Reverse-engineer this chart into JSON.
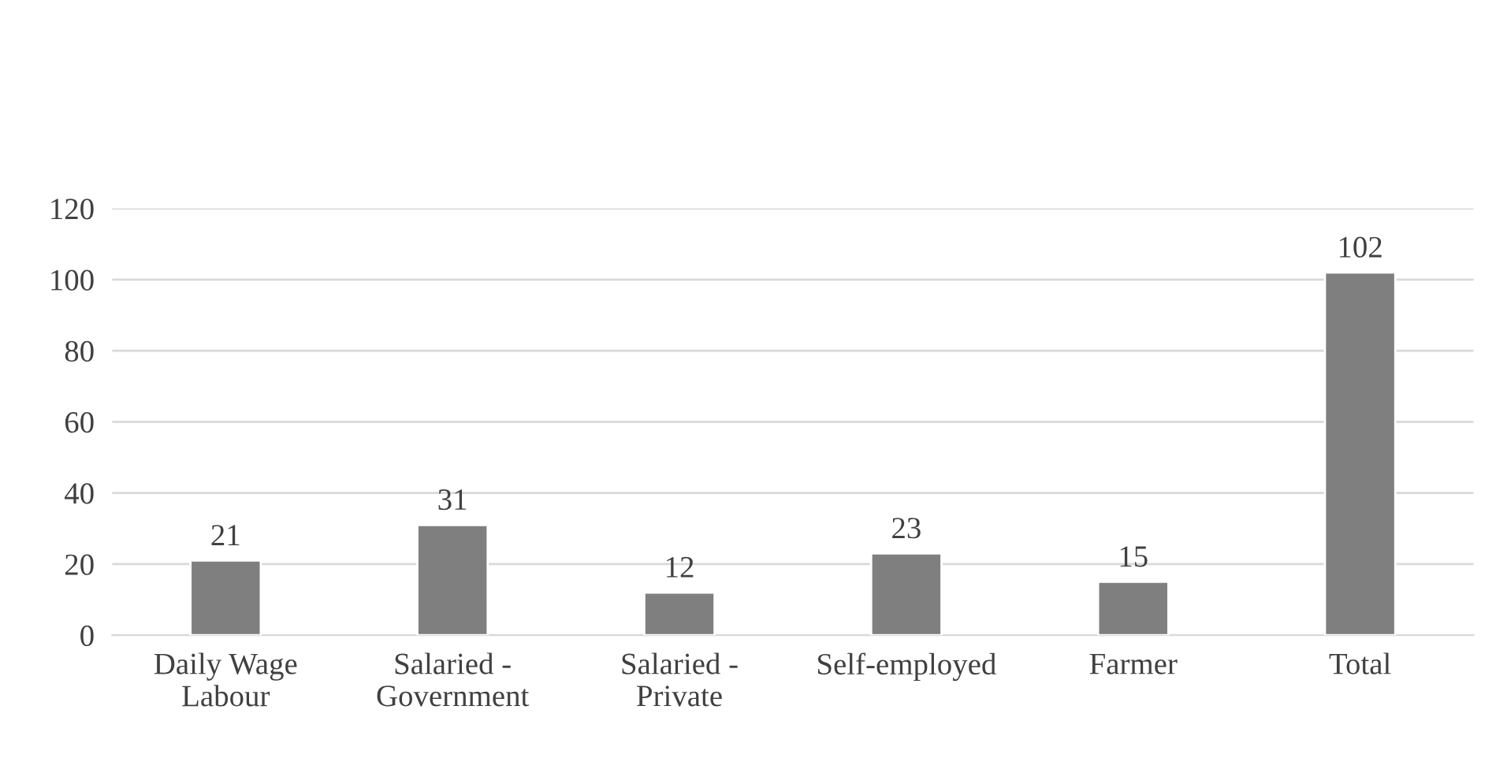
{
  "chart_data": {
    "type": "bar",
    "categories": [
      "Daily Wage\nLabour",
      "Salaried -\nGovernment",
      "Salaried -\nPrivate",
      "Self-employed",
      "Farmer",
      "Total"
    ],
    "values": [
      21,
      31,
      12,
      23,
      15,
      102
    ],
    "color": "#7f7f7f",
    "ylim": [
      0,
      120
    ],
    "yticks": [
      0,
      20,
      40,
      60,
      80,
      100,
      120
    ],
    "grid": "y",
    "data_labels": true,
    "legend": false
  }
}
